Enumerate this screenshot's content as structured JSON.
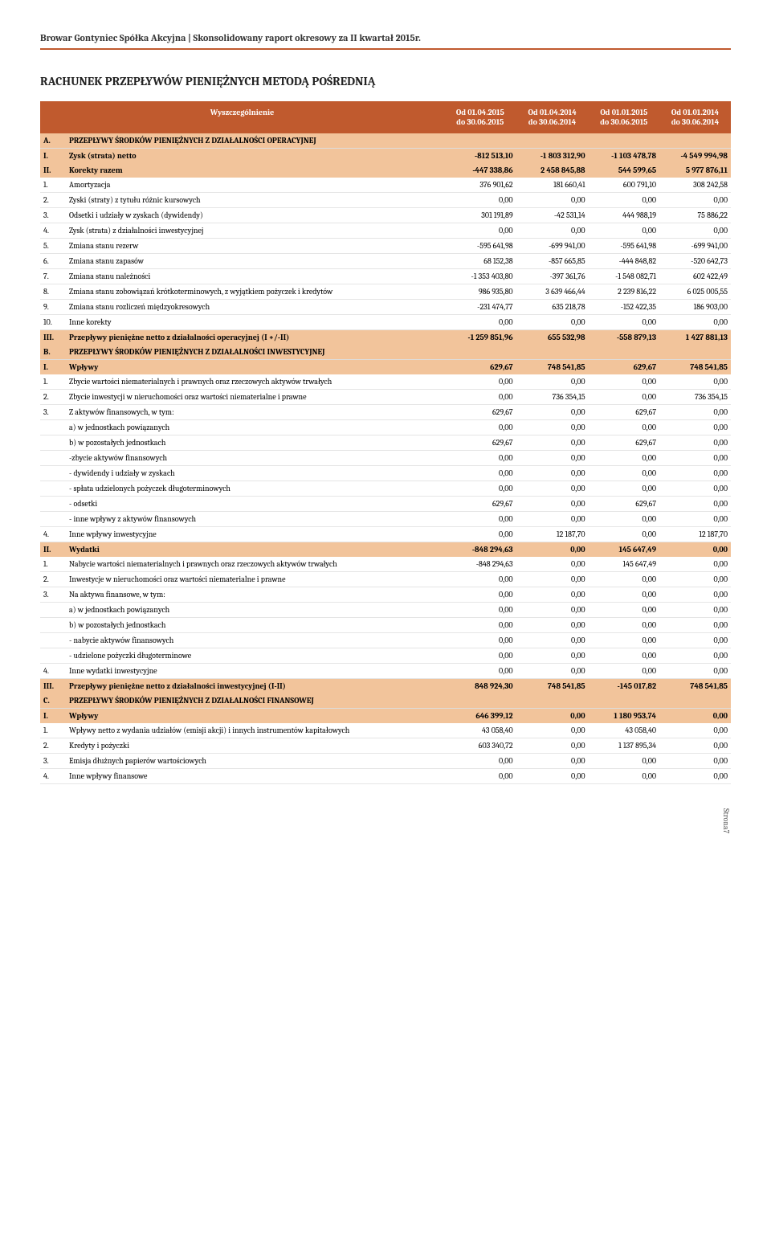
{
  "doc_header": "Browar Gontyniec Spółka Akcyjna | Skonsolidowany raport okresowy za II kwartał 2015r.",
  "title": "RACHUNEK PRZEPŁYWÓW PIENIĘŻNYCH METODĄ POŚREDNIĄ",
  "header_label": "Wyszczególnienie",
  "periods": [
    {
      "from": "Od 01.04.2015",
      "to": "do 30.06.2015"
    },
    {
      "from": "Od 01.04.2014",
      "to": "do 30.06.2014"
    },
    {
      "from": "Od 01.01.2015",
      "to": "do 30.06.2015"
    },
    {
      "from": "Od 01.01.2014",
      "to": "do 30.06.2014"
    }
  ],
  "rows": [
    {
      "type": "section",
      "idx": "A.",
      "label": "PRZEPŁYWY ŚRODKÓW PIENIĘŻNYCH Z DZIAŁALNOŚCI OPERACYJNEJ",
      "v": [
        "",
        "",
        "",
        ""
      ]
    },
    {
      "type": "subtotal",
      "idx": "I.",
      "label": "Zysk (strata) netto",
      "v": [
        "-812 513,10",
        "-1 803 312,90",
        "-1 103 478,78",
        "-4 549 994,98"
      ]
    },
    {
      "type": "subtotal",
      "idx": "II.",
      "label": "Korekty razem",
      "v": [
        "-447 338,86",
        "2 458 845,88",
        "544 599,65",
        "5 977 876,11"
      ]
    },
    {
      "type": "detail",
      "idx": "1.",
      "label": "Amortyzacja",
      "v": [
        "376 901,62",
        "181 660,41",
        "600 791,10",
        "308 242,58"
      ]
    },
    {
      "type": "detail",
      "idx": "2.",
      "label": "Zyski (straty) z tytułu różnic kursowych",
      "v": [
        "0,00",
        "0,00",
        "0,00",
        "0,00"
      ]
    },
    {
      "type": "detail",
      "idx": "3.",
      "label": "Odsetki i udziały w zyskach (dywidendy)",
      "v": [
        "301 191,89",
        "-42 531,14",
        "444 988,19",
        "75 886,22"
      ]
    },
    {
      "type": "detail",
      "idx": "4.",
      "label": "Zysk (strata) z działalności inwestycyjnej",
      "v": [
        "0,00",
        "0,00",
        "0,00",
        "0,00"
      ]
    },
    {
      "type": "detail",
      "idx": "5.",
      "label": "Zmiana stanu rezerw",
      "v": [
        "-595 641,98",
        "-699 941,00",
        "-595 641,98",
        "-699 941,00"
      ]
    },
    {
      "type": "detail",
      "idx": "6.",
      "label": "Zmiana stanu zapasów",
      "v": [
        "68 152,38",
        "-857 665,85",
        "-444 848,82",
        "-520 642,73"
      ]
    },
    {
      "type": "detail",
      "idx": "7.",
      "label": "Zmiana stanu należności",
      "v": [
        "-1 353 403,80",
        "-397 361,76",
        "-1 548 082,71",
        "602 422,49"
      ]
    },
    {
      "type": "detail",
      "idx": "8.",
      "label": "Zmiana stanu zobowiązań krótkoterminowych, z wyjątkiem pożyczek i kredytów",
      "v": [
        "986 935,80",
        "3 639 466,44",
        "2 239 816,22",
        "6 025 005,55"
      ]
    },
    {
      "type": "detail",
      "idx": "9.",
      "label": "Zmiana stanu rozliczeń międzyokresowych",
      "v": [
        "-231 474,77",
        "635 218,78",
        "-152 422,35",
        "186 903,00"
      ]
    },
    {
      "type": "detail",
      "idx": "10.",
      "label": "Inne korekty",
      "v": [
        "0,00",
        "0,00",
        "0,00",
        "0,00"
      ]
    },
    {
      "type": "subtotal",
      "idx": "III.",
      "label": "Przepływy pieniężne netto z działalności operacyjnej (I +/-II)",
      "v": [
        "-1 259 851,96",
        "655 532,98",
        "-558 879,13",
        "1 427 881,13"
      ]
    },
    {
      "type": "section",
      "idx": "B.",
      "label": "PRZEPŁYWY ŚRODKÓW PIENIĘŻNYCH Z DZIAŁALNOŚCI INWESTYCYJNEJ",
      "v": [
        "",
        "",
        "",
        ""
      ]
    },
    {
      "type": "subtotal",
      "idx": "I.",
      "label": "Wpływy",
      "v": [
        "629,67",
        "748 541,85",
        "629,67",
        "748 541,85"
      ]
    },
    {
      "type": "detail",
      "idx": "1.",
      "label": "Zbycie wartości niematerialnych i prawnych oraz rzeczowych aktywów trwałych",
      "v": [
        "0,00",
        "0,00",
        "0,00",
        "0,00"
      ]
    },
    {
      "type": "detail",
      "idx": "2.",
      "label": "Zbycie inwestycji w nieruchomości oraz wartości niematerialne i prawne",
      "v": [
        "0,00",
        "736 354,15",
        "0,00",
        "736 354,15"
      ]
    },
    {
      "type": "detail",
      "idx": "3.",
      "label": "Z aktywów finansowych, w tym:",
      "v": [
        "629,67",
        "0,00",
        "629,67",
        "0,00"
      ]
    },
    {
      "type": "detail2",
      "idx": "",
      "label": "a) w jednostkach powiązanych",
      "v": [
        "0,00",
        "0,00",
        "0,00",
        "0,00"
      ]
    },
    {
      "type": "detail2",
      "idx": "",
      "label": "b) w pozostałych jednostkach",
      "v": [
        "629,67",
        "0,00",
        "629,67",
        "0,00"
      ]
    },
    {
      "type": "detail2",
      "idx": "",
      "label": "-zbycie aktywów finansowych",
      "v": [
        "0,00",
        "0,00",
        "0,00",
        "0,00"
      ]
    },
    {
      "type": "detail2",
      "idx": "",
      "label": "- dywidendy i udziały w zyskach",
      "v": [
        "0,00",
        "0,00",
        "0,00",
        "0,00"
      ]
    },
    {
      "type": "detail2",
      "idx": "",
      "label": "- spłata udzielonych pożyczek długoterminowych",
      "v": [
        "0,00",
        "0,00",
        "0,00",
        "0,00"
      ]
    },
    {
      "type": "detail2",
      "idx": "",
      "label": "- odsetki",
      "v": [
        "629,67",
        "0,00",
        "629,67",
        "0,00"
      ]
    },
    {
      "type": "detail2",
      "idx": "",
      "label": "- inne wpływy z aktywów finansowych",
      "v": [
        "0,00",
        "0,00",
        "0,00",
        "0,00"
      ]
    },
    {
      "type": "detail",
      "idx": "4.",
      "label": "Inne wpływy inwestycyjne",
      "v": [
        "0,00",
        "12 187,70",
        "0,00",
        "12 187,70"
      ]
    },
    {
      "type": "subtotal",
      "idx": "II.",
      "label": "Wydatki",
      "v": [
        "-848 294,63",
        "0,00",
        "145 647,49",
        "0,00"
      ]
    },
    {
      "type": "detail",
      "idx": "1.",
      "label": "Nabycie wartości niematerialnych i prawnych oraz rzeczowych aktywów trwałych",
      "v": [
        "-848 294,63",
        "0,00",
        "145 647,49",
        "0,00"
      ]
    },
    {
      "type": "detail",
      "idx": "2.",
      "label": "Inwestycje w nieruchomości oraz wartości niematerialne i prawne",
      "v": [
        "0,00",
        "0,00",
        "0,00",
        "0,00"
      ]
    },
    {
      "type": "detail",
      "idx": "3.",
      "label": "Na aktywa finansowe, w tym:",
      "v": [
        "0,00",
        "0,00",
        "0,00",
        "0,00"
      ]
    },
    {
      "type": "detail2",
      "idx": "",
      "label": "a) w jednostkach powiązanych",
      "v": [
        "0,00",
        "0,00",
        "0,00",
        "0,00"
      ]
    },
    {
      "type": "detail2",
      "idx": "",
      "label": "b) w pozostałych jednostkach",
      "v": [
        "0,00",
        "0,00",
        "0,00",
        "0,00"
      ]
    },
    {
      "type": "detail2",
      "idx": "",
      "label": "- nabycie aktywów finansowych",
      "v": [
        "0,00",
        "0,00",
        "0,00",
        "0,00"
      ]
    },
    {
      "type": "detail2",
      "idx": "",
      "label": "- udzielone pożyczki długoterminowe",
      "v": [
        "0,00",
        "0,00",
        "0,00",
        "0,00"
      ]
    },
    {
      "type": "detail",
      "idx": "4.",
      "label": "Inne wydatki inwestycyjne",
      "v": [
        "0,00",
        "0,00",
        "0,00",
        "0,00"
      ]
    },
    {
      "type": "subtotal",
      "idx": "III.",
      "label": "Przepływy pieniężne netto z działalności inwestycyjnej (I-II)",
      "v": [
        "848 924,30",
        "748 541,85",
        "-145 017,82",
        "748 541,85"
      ]
    },
    {
      "type": "section",
      "idx": "C.",
      "label": "PRZEPŁYWY ŚRODKÓW PIENIĘŻNYCH Z DZIAŁALNOŚCI FINANSOWEJ",
      "v": [
        "",
        "",
        "",
        ""
      ]
    },
    {
      "type": "subtotal",
      "idx": "I.",
      "label": "Wpływy",
      "v": [
        "646 399,12",
        "0,00",
        "1 180 953,74",
        "0,00"
      ]
    },
    {
      "type": "detail",
      "idx": "1.",
      "label": "Wpływy netto z wydania udziałów (emisji akcji) i innych instrumentów kapitałowych",
      "v": [
        "43 058,40",
        "0,00",
        "43 058,40",
        "0,00"
      ]
    },
    {
      "type": "detail",
      "idx": "2.",
      "label": "Kredyty i pożyczki",
      "v": [
        "603 340,72",
        "0,00",
        "1 137 895,34",
        "0,00"
      ]
    },
    {
      "type": "detail",
      "idx": "3.",
      "label": "Emisja dłużnych papierów wartościowych",
      "v": [
        "0,00",
        "0,00",
        "0,00",
        "0,00"
      ]
    },
    {
      "type": "detail",
      "idx": "4.",
      "label": "Inne wpływy finansowe",
      "v": [
        "0,00",
        "0,00",
        "0,00",
        "0,00"
      ]
    }
  ],
  "page_number": "Strona7"
}
